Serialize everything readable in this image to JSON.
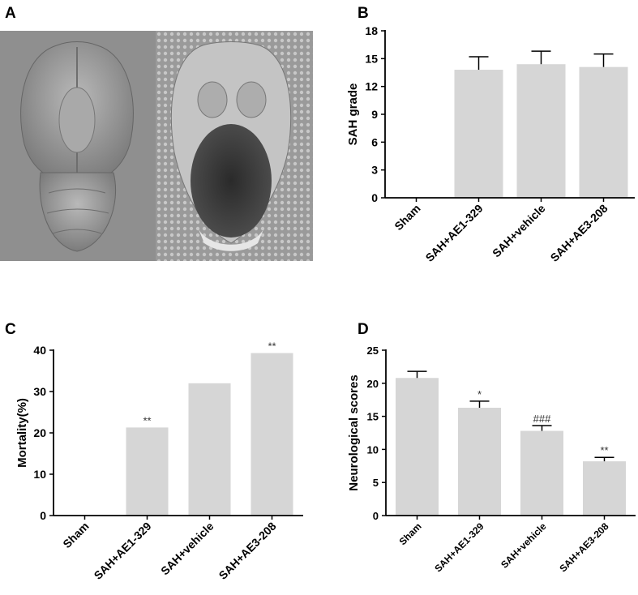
{
  "panels": {
    "a": {
      "letter": "A"
    },
    "b": {
      "letter": "B"
    },
    "c": {
      "letter": "C"
    },
    "d": {
      "letter": "D"
    }
  },
  "colors": {
    "bar": "#d6d6d6",
    "axis": "#000000"
  },
  "chart_data": [
    {
      "id": "b",
      "type": "bar",
      "categories": [
        "Sham",
        "SAH+AE1-329",
        "SAH+vehicle",
        "SAH+AE3-208"
      ],
      "values": [
        0,
        13.8,
        14.4,
        14.1
      ],
      "errors": [
        0,
        1.4,
        1.4,
        1.4
      ],
      "annotations": [
        "",
        "",
        "",
        ""
      ],
      "ylabel": "SAH grade",
      "ylim": [
        0,
        18
      ],
      "yticks": [
        "0",
        "3",
        "6",
        "9",
        "12",
        "15",
        "18"
      ]
    },
    {
      "id": "c",
      "type": "bar",
      "categories": [
        "Sham",
        "SAH+AE1-329",
        "SAH+vehicle",
        "SAH+AE3-208"
      ],
      "values": [
        0,
        21.3,
        32,
        39.3
      ],
      "errors": [
        0,
        0,
        0,
        0
      ],
      "annotations": [
        "",
        "**",
        "",
        "**"
      ],
      "ylabel": "Mortality(%)",
      "ylim": [
        0,
        40
      ],
      "yticks": [
        "0",
        "10",
        "20",
        "30",
        "40"
      ]
    },
    {
      "id": "d",
      "type": "bar",
      "categories": [
        "Sham",
        "SAH+AE1-329",
        "SAH+vehicle",
        "SAH+AE3-208"
      ],
      "values": [
        20.8,
        16.3,
        12.8,
        8.2
      ],
      "errors": [
        1.0,
        1.0,
        0.8,
        0.6
      ],
      "annotations": [
        "",
        "*",
        "###",
        "**"
      ],
      "ylabel": "Neurological scores",
      "ylim": [
        0,
        25
      ],
      "yticks": [
        "0",
        "5",
        "10",
        "15",
        "20",
        "25"
      ]
    }
  ]
}
